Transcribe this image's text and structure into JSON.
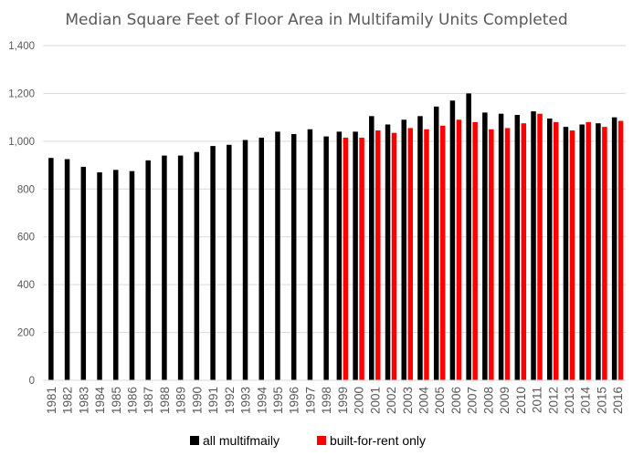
{
  "chart_data": {
    "type": "bar",
    "title": "Median Square Feet of Floor Area in Multifamily Units Completed",
    "xlabel": "",
    "ylabel": "",
    "ylim": [
      0,
      1400
    ],
    "yticks": [
      0,
      200,
      400,
      600,
      800,
      1000,
      1200,
      1400
    ],
    "ytick_labels": [
      "0",
      "200",
      "400",
      "600",
      "800",
      "1,000",
      "1,200",
      "1,400"
    ],
    "grid": true,
    "legend_position": "bottom",
    "categories": [
      "1981",
      "1982",
      "1983",
      "1984",
      "1985",
      "1986",
      "1987",
      "1988",
      "1989",
      "1990",
      "1991",
      "1992",
      "1993",
      "1994",
      "1995",
      "1996",
      "1997",
      "1998",
      "1999",
      "2000",
      "2001",
      "2002",
      "2003",
      "2004",
      "2005",
      "2006",
      "2007",
      "2008",
      "2009",
      "2010",
      "2011",
      "2012",
      "2013",
      "2014",
      "2015",
      "2016"
    ],
    "series": [
      {
        "name": "all multifmaily",
        "color": "#000000",
        "values": [
          930,
          925,
          893,
          870,
          880,
          875,
          920,
          940,
          940,
          955,
          980,
          985,
          1005,
          1015,
          1040,
          1030,
          1050,
          1020,
          1040,
          1040,
          1105,
          1070,
          1090,
          1105,
          1145,
          1170,
          1200,
          1120,
          1115,
          1110,
          1125,
          1095,
          1060,
          1070,
          1075,
          1100
        ]
      },
      {
        "name": "built-for-rent only",
        "color": "#ff0000",
        "values": [
          null,
          null,
          null,
          null,
          null,
          null,
          null,
          null,
          null,
          null,
          null,
          null,
          null,
          null,
          null,
          null,
          null,
          null,
          1015,
          1015,
          1045,
          1035,
          1055,
          1050,
          1065,
          1090,
          1080,
          1050,
          1055,
          1075,
          1115,
          1080,
          1045,
          1080,
          1060,
          1085
        ]
      }
    ]
  }
}
